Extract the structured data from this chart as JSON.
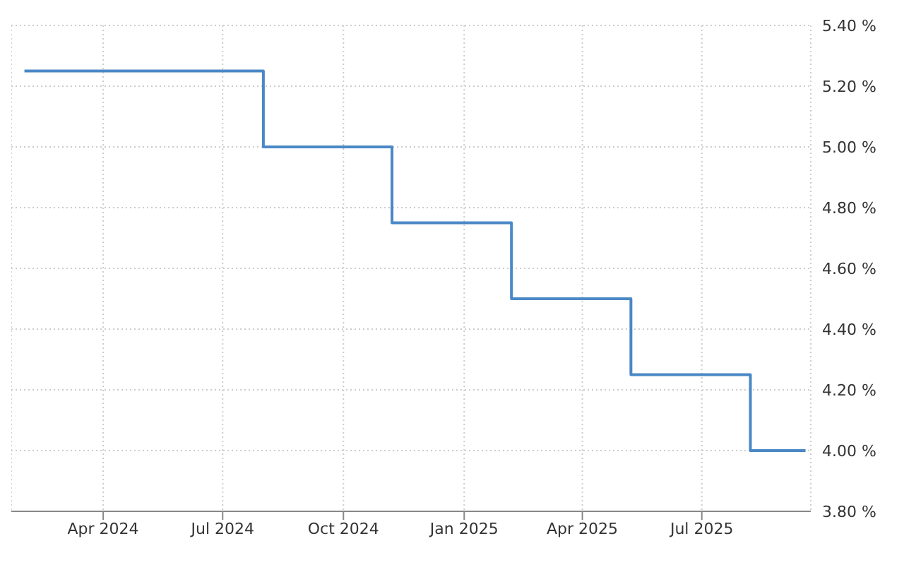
{
  "chart_data": {
    "type": "step",
    "x": [
      "2024-02-01",
      "2024-08-01",
      "2024-11-07",
      "2025-02-06",
      "2025-05-08",
      "2025-08-07",
      "2025-09-18"
    ],
    "series": [
      {
        "color": "#4a88c6",
        "values": [
          5.25,
          5.0,
          4.75,
          4.5,
          4.25,
          4.0,
          4.0
        ]
      }
    ],
    "xlim": [
      "2024-01-22",
      "2025-09-22"
    ],
    "xticks": [
      {
        "value": "2024-04-01",
        "label": "Apr 2024"
      },
      {
        "value": "2024-07-01",
        "label": "Jul 2024"
      },
      {
        "value": "2024-10-01",
        "label": "Oct 2024"
      },
      {
        "value": "2025-01-01",
        "label": "Jan 2025"
      },
      {
        "value": "2025-04-01",
        "label": "Apr 2025"
      },
      {
        "value": "2025-07-01",
        "label": "Jul 2025"
      }
    ],
    "ylim": [
      3.8,
      5.4
    ],
    "yticks": [
      {
        "value": 3.8,
        "label": "3.80 %"
      },
      {
        "value": 4.0,
        "label": "4.00 %"
      },
      {
        "value": 4.2,
        "label": "4.20 %"
      },
      {
        "value": 4.4,
        "label": "4.40 %"
      },
      {
        "value": 4.6,
        "label": "4.60 %"
      },
      {
        "value": 4.8,
        "label": "4.80 %"
      },
      {
        "value": 5.0,
        "label": "5.00 %"
      },
      {
        "value": 5.2,
        "label": "5.20 %"
      },
      {
        "value": 5.4,
        "label": "5.40 %"
      }
    ],
    "grid": true,
    "marker": "none",
    "line_style": "solid",
    "legend": false
  }
}
